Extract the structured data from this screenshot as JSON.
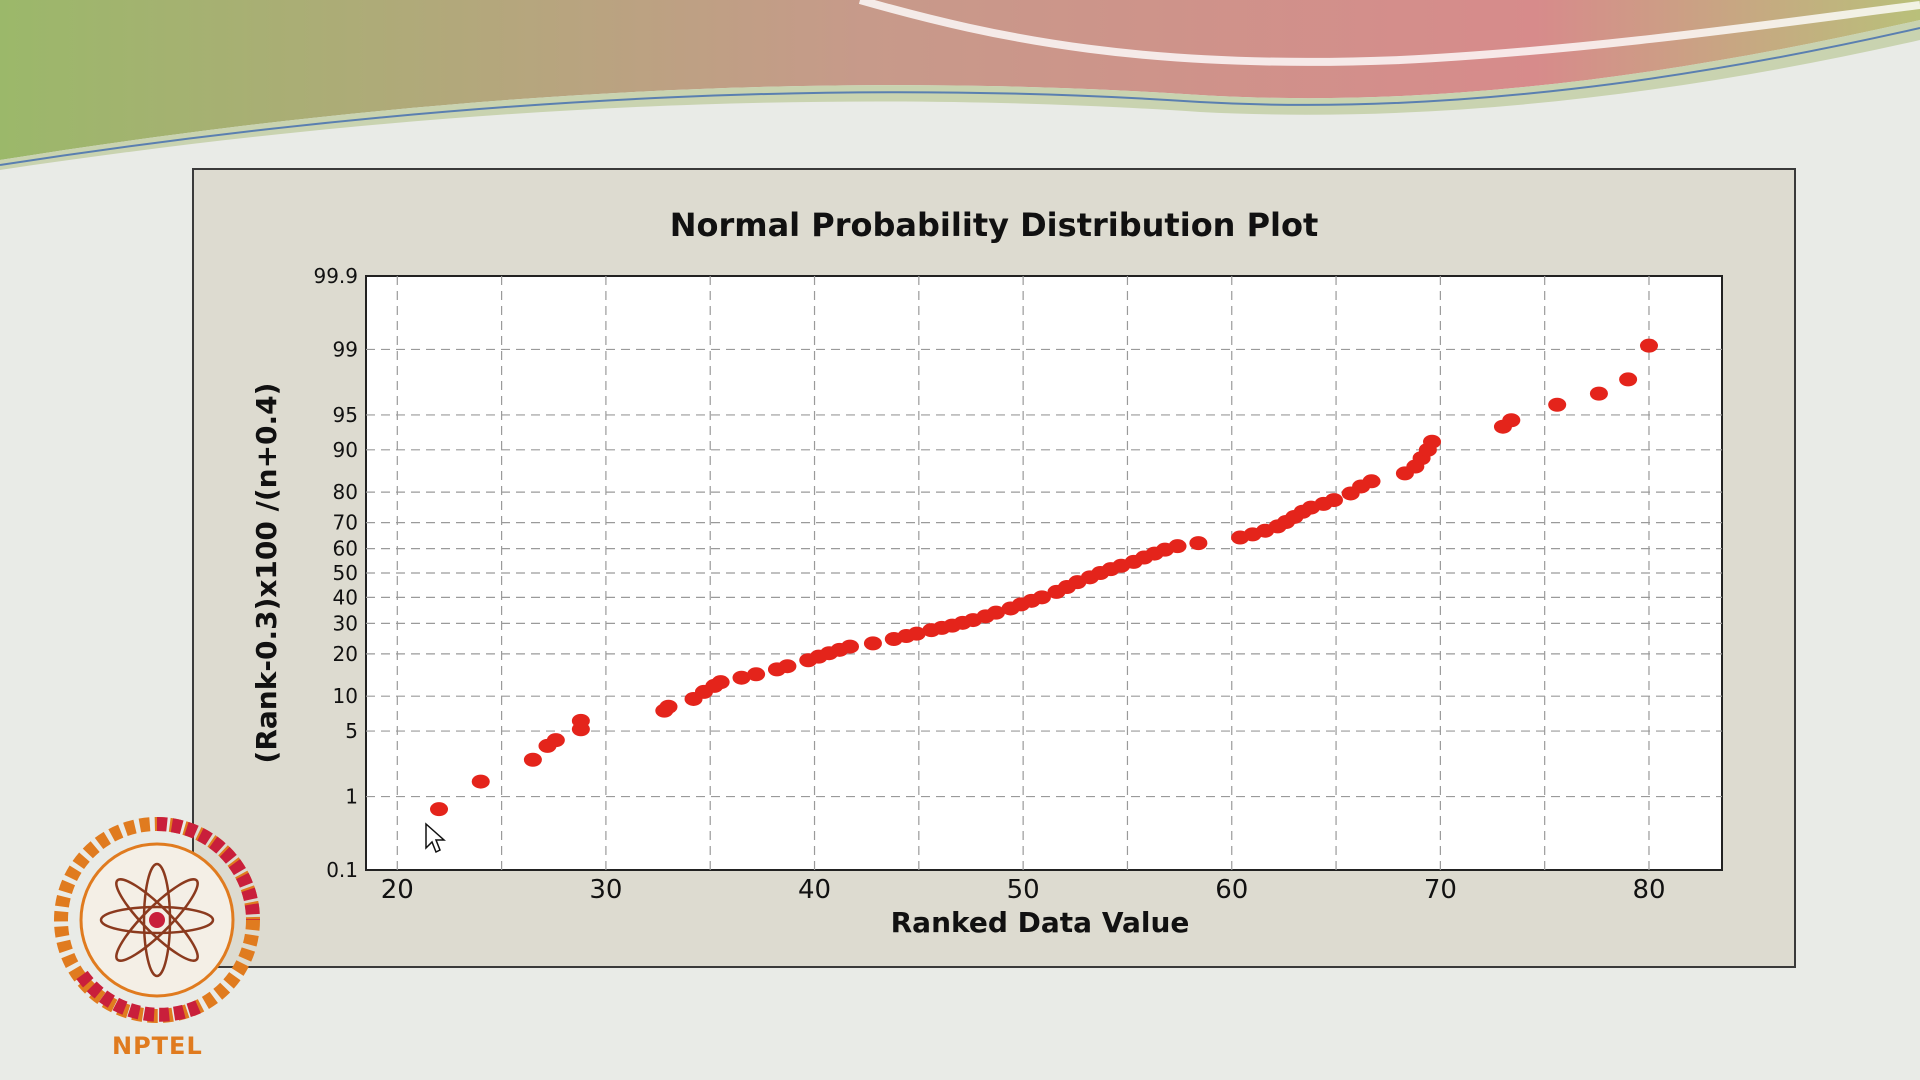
{
  "branding": {
    "logo_text": "NPTEL"
  },
  "colors": {
    "marker": "#e4241b",
    "panel_bg": "#dddbd0",
    "plot_bg": "#ffffff",
    "logo_orange": "#e07b1f",
    "logo_red": "#c91f3b"
  },
  "chart_data": {
    "type": "scatter",
    "title": "Normal Probability Distribution Plot",
    "xlabel": "Ranked Data Value",
    "ylabel": "(Rank-0.3)x100 /(n+0.4)",
    "xlim": [
      18.5,
      83.5
    ],
    "ylim": [
      0.1,
      99.9
    ],
    "y_scale": "normal-probability",
    "grid": true,
    "xticks": [
      20,
      30,
      40,
      50,
      60,
      70,
      80
    ],
    "xtick_labels": [
      "20",
      "30",
      "40",
      "50",
      "60",
      "70",
      "80"
    ],
    "yticks": [
      0.1,
      1,
      5,
      10,
      20,
      30,
      40,
      50,
      60,
      70,
      80,
      90,
      95,
      99,
      99.9
    ],
    "ytick_labels": [
      "0.1",
      "1",
      "5",
      "10",
      "20",
      "30",
      "40",
      "50",
      "60",
      "70",
      "80",
      "90",
      "95",
      "99",
      "99.9"
    ],
    "x_gridlines": [
      20,
      25,
      30,
      35,
      40,
      45,
      50,
      55,
      60,
      65,
      70,
      75,
      80
    ],
    "points": [
      [
        22,
        0.7
      ],
      [
        24,
        1.5
      ],
      [
        26.5,
        2.6
      ],
      [
        27.2,
        3.6
      ],
      [
        27.6,
        4.1
      ],
      [
        28.8,
        5.2
      ],
      [
        28.8,
        6.2
      ],
      [
        32.8,
        7.6
      ],
      [
        33,
        8.2
      ],
      [
        34.2,
        9.5
      ],
      [
        34.7,
        10.8
      ],
      [
        35.2,
        12.0
      ],
      [
        35.5,
        12.8
      ],
      [
        36.5,
        13.8
      ],
      [
        37.2,
        14.6
      ],
      [
        38.2,
        15.8
      ],
      [
        38.7,
        16.6
      ],
      [
        39.7,
        18.2
      ],
      [
        40.2,
        19.2
      ],
      [
        40.7,
        20.2
      ],
      [
        41.2,
        21.2
      ],
      [
        41.7,
        22.2
      ],
      [
        42.8,
        23.2
      ],
      [
        43.8,
        24.6
      ],
      [
        44.4,
        25.6
      ],
      [
        44.9,
        26.4
      ],
      [
        45.6,
        27.6
      ],
      [
        46.1,
        28.4
      ],
      [
        46.6,
        29.2
      ],
      [
        47.1,
        30.2
      ],
      [
        47.6,
        31.2
      ],
      [
        48.2,
        32.6
      ],
      [
        48.7,
        34.0
      ],
      [
        49.4,
        35.6
      ],
      [
        49.9,
        37.2
      ],
      [
        50.4,
        38.6
      ],
      [
        50.9,
        40.0
      ],
      [
        51.6,
        42.2
      ],
      [
        52.1,
        44.2
      ],
      [
        52.6,
        46.2
      ],
      [
        53.2,
        48.2
      ],
      [
        53.7,
        50.0
      ],
      [
        54.2,
        51.6
      ],
      [
        54.7,
        53.0
      ],
      [
        55.3,
        54.6
      ],
      [
        55.8,
        56.4
      ],
      [
        56.3,
        58.0
      ],
      [
        56.8,
        59.6
      ],
      [
        57.4,
        61.0
      ],
      [
        58.4,
        62.2
      ],
      [
        60.4,
        64.4
      ],
      [
        61.0,
        65.6
      ],
      [
        61.6,
        67.0
      ],
      [
        62.2,
        68.6
      ],
      [
        62.6,
        70.2
      ],
      [
        63.0,
        72.0
      ],
      [
        63.4,
        73.8
      ],
      [
        63.8,
        75.2
      ],
      [
        64.4,
        76.4
      ],
      [
        64.9,
        77.6
      ],
      [
        65.7,
        79.6
      ],
      [
        66.2,
        81.6
      ],
      [
        66.7,
        83.0
      ],
      [
        68.3,
        85.0
      ],
      [
        68.8,
        86.6
      ],
      [
        69.1,
        88.4
      ],
      [
        69.4,
        90.0
      ],
      [
        69.6,
        91.4
      ],
      [
        73.0,
        93.6
      ],
      [
        73.4,
        94.4
      ],
      [
        75.6,
        96.0
      ],
      [
        77.6,
        96.9
      ],
      [
        79.0,
        97.8
      ],
      [
        80.0,
        99.1
      ]
    ]
  }
}
